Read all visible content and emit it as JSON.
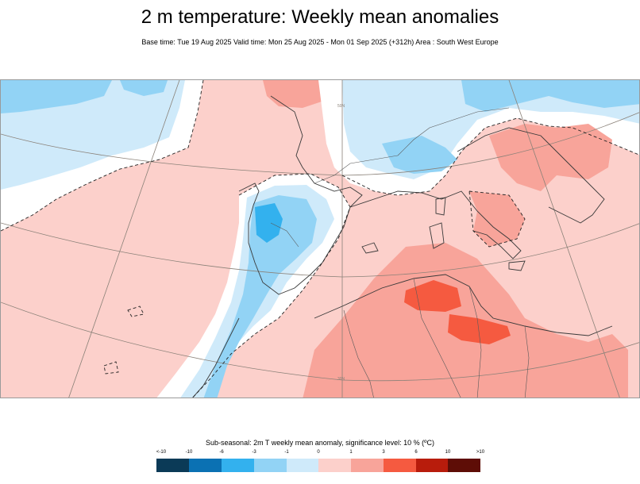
{
  "title": "2 m temperature: Weekly mean anomalies",
  "subtitle": "Base time: Tue 19 Aug 2025 Valid time: Mon 25 Aug 2025 - Mon 01 Sep 2025 (+312h) Area : South West Europe",
  "legend": {
    "title": "Sub-seasonal: 2m T weekly mean anomaly, significance level: 10 % (ºC)",
    "ticks": [
      "<-10",
      "-10",
      "-6",
      "-3",
      "-1",
      "0",
      "1",
      "3",
      "6",
      "10",
      ">10"
    ],
    "colors": [
      "#0b3a57",
      "#0b71b3",
      "#33b1ee",
      "#92d3f5",
      "#cfeafa",
      "#ffffff",
      "#fcd0cb",
      "#f8a49a",
      "#f55a40",
      "#b81c0c",
      "#5e0d06"
    ]
  },
  "map": {
    "grid_labels": [
      "50N",
      "30N"
    ],
    "colors": {
      "background_warm": "#fcd0cb",
      "cold_light": "#cfeafa",
      "cold_mid": "#92d3f5",
      "cold_strong": "#33b1ee",
      "warm_mid": "#f8a49a",
      "warm_strong": "#f55a40",
      "coast": "#3a3a3a",
      "border": "#5a5a5a",
      "grid": "#8a8178"
    }
  }
}
